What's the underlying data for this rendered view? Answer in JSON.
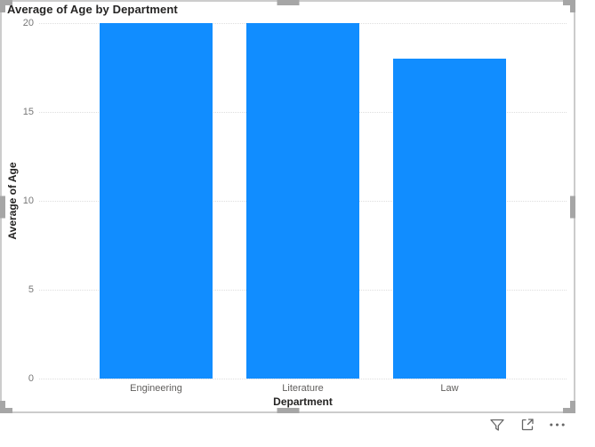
{
  "chart_data": {
    "type": "bar",
    "title": "Average of Age by Department",
    "categories": [
      "Engineering",
      "Literature",
      "Law"
    ],
    "values": [
      20,
      20,
      18
    ],
    "xlabel": "Department",
    "ylabel": "Average of Age",
    "ylim": [
      0,
      20
    ],
    "yticks": [
      0,
      5,
      10,
      15,
      20
    ],
    "grid": "horizontal-dotted",
    "legend": "none",
    "bar_color": "#118DFF"
  },
  "colors": {
    "bar": "#118DFF",
    "gridline": "#DEDEDE",
    "tick_label": "#777777",
    "category_label": "#605E5C",
    "axis_title": "#252423",
    "title": "#252423",
    "selection_border": "#CCCCCC",
    "handle": "#A6A6A6",
    "icon": "#666666",
    "background": "#FFFFFF"
  },
  "visual": {
    "state": "selected",
    "handles": [
      "top-left",
      "top",
      "top-right",
      "left",
      "right",
      "bottom-left",
      "bottom",
      "bottom-right"
    ]
  },
  "hover_toolbar": {
    "icons": [
      "filter-icon",
      "focus-mode-icon",
      "more-options-icon"
    ]
  }
}
